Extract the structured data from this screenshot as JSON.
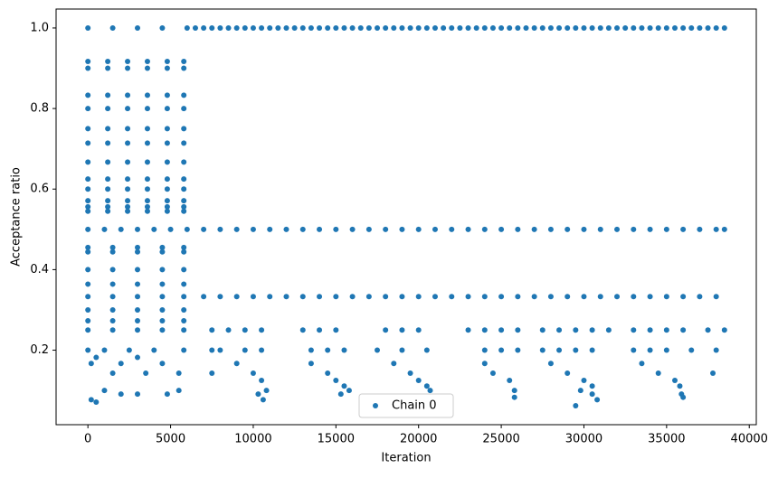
{
  "chart_data": {
    "type": "scatter",
    "xlabel": "Iteration",
    "ylabel": "Acceptance ratio",
    "xlim": [
      -1925,
      40425
    ],
    "ylim": [
      0.015,
      1.047
    ],
    "xticks": [
      0,
      5000,
      10000,
      15000,
      20000,
      25000,
      30000,
      35000,
      40000
    ],
    "yticks": [
      0.2,
      0.4,
      0.6,
      0.8,
      {
        "value": 1,
        "label": "1.0"
      }
    ],
    "legend": "lower center",
    "series": [
      {
        "name": "Chain 0",
        "color": "#1f77b4",
        "x": [
          0,
          1500,
          3000,
          4500,
          6000,
          6500,
          7000,
          7500,
          8000,
          8500,
          9000,
          9500,
          10000,
          10500,
          11000,
          11500,
          12000,
          12500,
          13000,
          13500,
          14000,
          14500,
          15000,
          15500,
          16000,
          16500,
          17000,
          17500,
          18000,
          18500,
          19000,
          19500,
          20000,
          20500,
          21000,
          21500,
          22000,
          22500,
          23000,
          23500,
          24000,
          24500,
          25000,
          25500,
          26000,
          26500,
          27000,
          27500,
          28000,
          28500,
          29000,
          29500,
          30000,
          30500,
          31000,
          31500,
          32000,
          32500,
          33000,
          33500,
          34000,
          34500,
          35000,
          35500,
          36000,
          36500,
          37000,
          37500,
          38000,
          38500,
          0,
          1000,
          2000,
          3000,
          4000,
          5000,
          6000,
          7000,
          8000,
          9000,
          10000,
          11000,
          12000,
          13000,
          14000,
          15000,
          16000,
          17000,
          18000,
          19000,
          20000,
          21000,
          22000,
          23000,
          24000,
          25000,
          26000,
          27000,
          28000,
          29000,
          30000,
          31000,
          32000,
          33000,
          34000,
          35000,
          36000,
          37000,
          38000,
          38500,
          7000,
          8000,
          9000,
          10000,
          11000,
          12000,
          13000,
          14000,
          15000,
          16000,
          17000,
          18000,
          19000,
          20000,
          21000,
          22000,
          23000,
          24000,
          25000,
          26000,
          27000,
          28000,
          29000,
          30000,
          31000,
          32000,
          33000,
          34000,
          35000,
          36000,
          37000,
          38000,
          7500,
          8500,
          9500,
          10500,
          13000,
          14000,
          15000,
          18000,
          19000,
          20000,
          23000,
          24000,
          25000,
          26000,
          27500,
          28500,
          29500,
          30500,
          31500,
          33000,
          34000,
          35000,
          36000,
          37500,
          38500,
          7500,
          8000,
          9500,
          10500,
          13500,
          14500,
          15500,
          17500,
          19000,
          20500,
          24000,
          25000,
          26000,
          27500,
          28500,
          29500,
          30500,
          33000,
          34000,
          35000,
          36500,
          38000,
          7500,
          9000,
          10000,
          10500,
          10800,
          10300,
          10600,
          13500,
          14500,
          15000,
          15500,
          15800,
          15300,
          18500,
          19500,
          20000,
          20500,
          20700,
          24000,
          24500,
          25500,
          25800,
          25800,
          28000,
          29000,
          30000,
          30500,
          30500,
          30800,
          29500,
          29800,
          33500,
          34500,
          35500,
          35800,
          35900,
          36000,
          37800,
          0,
          1200,
          2400,
          3600,
          4800,
          5800,
          0,
          1200,
          2400,
          3600,
          4800,
          5800,
          0,
          1200,
          2400,
          3600,
          4800,
          5800,
          0,
          1200,
          2400,
          3600,
          4800,
          5800,
          0,
          1200,
          2400,
          3600,
          4800,
          5800,
          0,
          1200,
          2400,
          3600,
          4800,
          5800,
          0,
          1200,
          2400,
          3600,
          4800,
          5800,
          0,
          1200,
          2400,
          3600,
          4800,
          5800,
          0,
          1200,
          2400,
          3600,
          4800,
          5800,
          0,
          1200,
          2400,
          3600,
          4800,
          5800,
          0,
          1200,
          2400,
          3600,
          4800,
          5800,
          0,
          1200,
          2400,
          3600,
          4800,
          5800,
          0,
          1500,
          3000,
          4500,
          5800,
          0,
          1500,
          3000,
          4500,
          5800,
          0,
          1500,
          3000,
          4500,
          5800,
          0,
          1500,
          3000,
          4500,
          5800,
          0,
          1500,
          3000,
          4500,
          5800,
          0,
          1500,
          3000,
          4500,
          5800,
          0,
          1500,
          3000,
          4500,
          5800,
          0,
          1500,
          3000,
          4500,
          5800,
          0,
          1000,
          2500,
          4000,
          5800,
          500,
          3000,
          200,
          2000,
          4500,
          1500,
          3500,
          5500,
          1000,
          5500,
          2000,
          3000,
          4800,
          200,
          500
        ],
        "values": [
          1,
          1,
          1,
          1,
          1,
          1,
          1,
          1,
          1,
          1,
          1,
          1,
          1,
          1,
          1,
          1,
          1,
          1,
          1,
          1,
          1,
          1,
          1,
          1,
          1,
          1,
          1,
          1,
          1,
          1,
          1,
          1,
          1,
          1,
          1,
          1,
          1,
          1,
          1,
          1,
          1,
          1,
          1,
          1,
          1,
          1,
          1,
          1,
          1,
          1,
          1,
          1,
          1,
          1,
          1,
          1,
          1,
          1,
          1,
          1,
          1,
          1,
          1,
          1,
          1,
          1,
          1,
          1,
          1,
          1,
          0.5,
          0.5,
          0.5,
          0.5,
          0.5,
          0.5,
          0.5,
          0.5,
          0.5,
          0.5,
          0.5,
          0.5,
          0.5,
          0.5,
          0.5,
          0.5,
          0.5,
          0.5,
          0.5,
          0.5,
          0.5,
          0.5,
          0.5,
          0.5,
          0.5,
          0.5,
          0.5,
          0.5,
          0.5,
          0.5,
          0.5,
          0.5,
          0.5,
          0.5,
          0.5,
          0.5,
          0.5,
          0.5,
          0.5,
          0.5,
          0.333,
          0.333,
          0.333,
          0.333,
          0.333,
          0.333,
          0.333,
          0.333,
          0.333,
          0.333,
          0.333,
          0.333,
          0.333,
          0.333,
          0.333,
          0.333,
          0.333,
          0.333,
          0.333,
          0.333,
          0.333,
          0.333,
          0.333,
          0.333,
          0.333,
          0.333,
          0.333,
          0.333,
          0.333,
          0.333,
          0.333,
          0.333,
          0.25,
          0.25,
          0.25,
          0.25,
          0.25,
          0.25,
          0.25,
          0.25,
          0.25,
          0.25,
          0.25,
          0.25,
          0.25,
          0.25,
          0.25,
          0.25,
          0.25,
          0.25,
          0.25,
          0.25,
          0.25,
          0.25,
          0.25,
          0.25,
          0.25,
          0.2,
          0.2,
          0.2,
          0.2,
          0.2,
          0.2,
          0.2,
          0.2,
          0.2,
          0.2,
          0.2,
          0.2,
          0.2,
          0.2,
          0.2,
          0.2,
          0.2,
          0.2,
          0.2,
          0.2,
          0.2,
          0.2,
          0.143,
          0.167,
          0.143,
          0.125,
          0.1,
          0.091,
          0.077,
          0.167,
          0.143,
          0.125,
          0.111,
          0.1,
          0.091,
          0.167,
          0.143,
          0.125,
          0.111,
          0.1,
          0.167,
          0.143,
          0.125,
          0.1,
          0.083,
          0.167,
          0.143,
          0.125,
          0.111,
          0.091,
          0.077,
          0.062,
          0.1,
          0.167,
          0.143,
          0.125,
          0.111,
          0.091,
          0.083,
          0.143,
          0.917,
          0.917,
          0.917,
          0.917,
          0.917,
          0.917,
          0.9,
          0.9,
          0.9,
          0.9,
          0.9,
          0.9,
          0.833,
          0.833,
          0.833,
          0.833,
          0.833,
          0.833,
          0.8,
          0.8,
          0.8,
          0.8,
          0.8,
          0.8,
          0.75,
          0.75,
          0.75,
          0.75,
          0.75,
          0.75,
          0.714,
          0.714,
          0.714,
          0.714,
          0.714,
          0.714,
          0.667,
          0.667,
          0.667,
          0.667,
          0.667,
          0.667,
          0.625,
          0.625,
          0.625,
          0.625,
          0.625,
          0.625,
          0.6,
          0.6,
          0.6,
          0.6,
          0.6,
          0.6,
          0.571,
          0.571,
          0.571,
          0.571,
          0.571,
          0.571,
          0.556,
          0.556,
          0.556,
          0.556,
          0.556,
          0.556,
          0.545,
          0.545,
          0.545,
          0.545,
          0.545,
          0.545,
          0.455,
          0.455,
          0.455,
          0.455,
          0.455,
          0.444,
          0.444,
          0.444,
          0.444,
          0.444,
          0.4,
          0.4,
          0.4,
          0.4,
          0.4,
          0.364,
          0.364,
          0.364,
          0.364,
          0.364,
          0.333,
          0.333,
          0.333,
          0.333,
          0.333,
          0.3,
          0.3,
          0.3,
          0.3,
          0.3,
          0.273,
          0.273,
          0.273,
          0.273,
          0.273,
          0.25,
          0.25,
          0.25,
          0.25,
          0.25,
          0.2,
          0.2,
          0.2,
          0.2,
          0.2,
          0.182,
          0.182,
          0.167,
          0.167,
          0.167,
          0.143,
          0.143,
          0.143,
          0.1,
          0.1,
          0.091,
          0.091,
          0.091,
          0.077,
          0.071
        ]
      }
    ]
  }
}
